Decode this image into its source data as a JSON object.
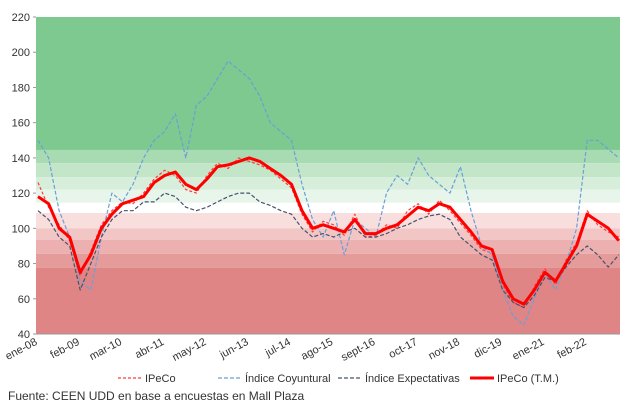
{
  "chart_data": {
    "type": "line",
    "categories": [
      "ene-08",
      null,
      null,
      null,
      "feb-09",
      null,
      null,
      null,
      "mar-10",
      null,
      null,
      null,
      "abr-11",
      null,
      null,
      null,
      "may-12",
      null,
      null,
      null,
      "jun-13",
      null,
      null,
      null,
      "jul-14",
      null,
      null,
      null,
      "ago-15",
      null,
      null,
      null,
      "sept-16",
      null,
      null,
      null,
      "oct-17",
      null,
      null,
      null,
      "nov-18",
      null,
      null,
      null,
      "dic-19",
      null,
      null,
      null,
      "ene-21",
      null,
      null,
      null,
      "feb-22",
      null,
      null,
      null
    ],
    "ylim": [
      40,
      220
    ],
    "yticks": [
      40,
      60,
      80,
      100,
      120,
      140,
      160,
      180,
      200,
      220
    ],
    "bands": [
      {
        "from": 144.5,
        "to": 220,
        "color": "#7dc98f"
      },
      {
        "from": 137,
        "to": 144.5,
        "color": "#a9dbb3"
      },
      {
        "from": 129,
        "to": 137,
        "color": "#c3e6c9"
      },
      {
        "from": 122,
        "to": 129,
        "color": "#d6eeda"
      },
      {
        "from": 114.5,
        "to": 122,
        "color": "#e8f5ea"
      },
      {
        "from": 108.7,
        "to": 114.5,
        "color": "#ffffff"
      },
      {
        "from": 100,
        "to": 108.7,
        "color": "#f9dede"
      },
      {
        "from": 93.4,
        "to": 100,
        "color": "#f3c6c6"
      },
      {
        "from": 85.5,
        "to": 93.4,
        "color": "#ecb0b0"
      },
      {
        "from": 77.5,
        "to": 85.5,
        "color": "#e69b9b"
      },
      {
        "from": 40,
        "to": 77.5,
        "color": "#e08585"
      }
    ],
    "series": [
      {
        "name": "IPeCo",
        "color": "#ff3b3b",
        "dash": "3,2",
        "width": 1.2,
        "values": [
          126,
          112,
          102,
          93,
          73,
          87,
          102,
          110,
          115,
          114,
          120,
          128,
          133,
          130,
          122,
          120,
          130,
          137,
          134,
          140,
          138,
          136,
          133,
          128,
          123,
          108,
          98,
          104,
          102,
          96,
          108,
          95,
          96,
          102,
          100,
          110,
          114,
          108,
          116,
          110,
          103,
          96,
          88,
          86,
          68,
          58,
          55,
          67,
          77,
          68,
          82,
          92,
          110,
          102,
          98,
          95
        ]
      },
      {
        "name": "Índice Coyuntural",
        "color": "#6a9fd8",
        "dash": "4,2",
        "width": 1.2,
        "values": [
          150,
          140,
          110,
          95,
          70,
          65,
          95,
          120,
          115,
          125,
          140,
          150,
          155,
          165,
          140,
          170,
          175,
          185,
          195,
          190,
          185,
          175,
          160,
          155,
          150,
          125,
          105,
          95,
          110,
          85,
          105,
          100,
          95,
          120,
          130,
          125,
          140,
          130,
          125,
          120,
          135,
          110,
          90,
          85,
          65,
          50,
          45,
          60,
          75,
          65,
          80,
          100,
          150,
          150,
          145,
          140
        ]
      },
      {
        "name": "Índice Expectativas",
        "color": "#44546a",
        "dash": "4,2",
        "width": 1.2,
        "values": [
          110,
          105,
          95,
          90,
          65,
          80,
          95,
          105,
          110,
          110,
          115,
          115,
          120,
          118,
          112,
          110,
          112,
          115,
          118,
          120,
          120,
          115,
          113,
          110,
          108,
          100,
          95,
          97,
          95,
          98,
          100,
          95,
          95,
          97,
          100,
          102,
          105,
          107,
          108,
          105,
          95,
          90,
          85,
          82,
          65,
          58,
          55,
          62,
          72,
          70,
          78,
          85,
          90,
          85,
          78,
          85
        ]
      },
      {
        "name": "IPeCo (T.M.)",
        "color": "#ff0000",
        "dash": "",
        "width": 3,
        "values": [
          118,
          114,
          100,
          95,
          75,
          85,
          100,
          108,
          114,
          116,
          118,
          126,
          130,
          132,
          125,
          122,
          128,
          135,
          136,
          138,
          140,
          138,
          134,
          130,
          125,
          110,
          100,
          102,
          100,
          98,
          105,
          97,
          97,
          100,
          102,
          107,
          112,
          110,
          114,
          112,
          105,
          98,
          90,
          88,
          70,
          60,
          57,
          65,
          75,
          70,
          80,
          90,
          108,
          104,
          100,
          93
        ]
      }
    ],
    "source": "Fuente: CEEN UDD en base a encuestas en Mall Plaza"
  }
}
